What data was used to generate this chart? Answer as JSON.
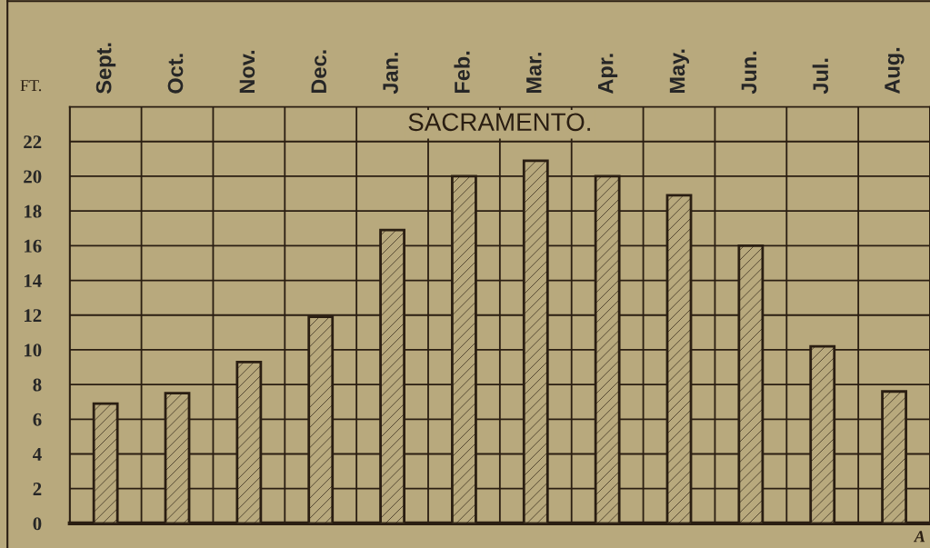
{
  "chart_data": {
    "type": "bar",
    "title": "SACRAMENTO.",
    "ylabel": "FT.",
    "categories": [
      "Sept.",
      "Oct.",
      "Nov.",
      "Dec.",
      "Jan.",
      "Feb.",
      "Mar.",
      "Apr.",
      "May.",
      "Jun.",
      "Jul.",
      "Aug."
    ],
    "values": [
      6.9,
      7.5,
      9.3,
      11.9,
      16.9,
      20,
      20.9,
      20,
      18.9,
      16.0,
      10.2,
      7.6
    ],
    "color": "#2a1e12",
    "ylim": [
      0,
      24
    ],
    "yticks": [
      0,
      2,
      4,
      6,
      8,
      10,
      12,
      14,
      16,
      18,
      20,
      22
    ],
    "grid": true,
    "annotations": [
      "A"
    ]
  }
}
